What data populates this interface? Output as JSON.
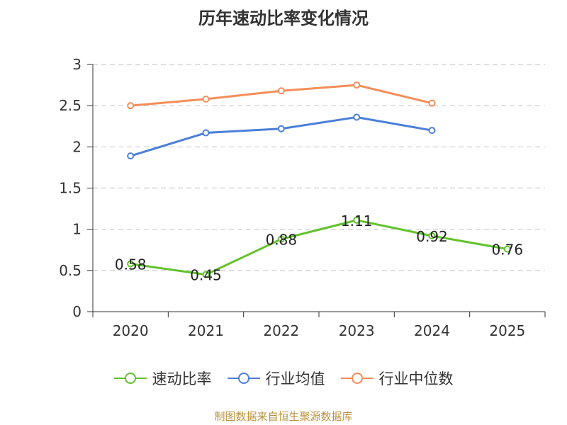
{
  "chart_data": {
    "type": "line",
    "title": "历年速动比率变化情况",
    "categories": [
      "2020",
      "2021",
      "2022",
      "2023",
      "2024",
      "2025"
    ],
    "ylim": [
      0,
      3
    ],
    "yticks": [
      "0",
      "0.5",
      "1",
      "1.5",
      "2",
      "2.5",
      "3"
    ],
    "grid": true,
    "legend_position": "bottom",
    "series": [
      {
        "name": "速动比率",
        "color": "#63c22d",
        "show_labels": true,
        "values": [
          0.58,
          0.45,
          0.88,
          1.11,
          0.92,
          0.76
        ],
        "labels": [
          "0.58",
          "0.45",
          "0.88",
          "1.11",
          "0.92",
          "0.76"
        ]
      },
      {
        "name": "行业均值",
        "color": "#4a7fda",
        "show_labels": false,
        "values": [
          1.89,
          2.17,
          2.22,
          2.36,
          2.2,
          null
        ]
      },
      {
        "name": "行业中位数",
        "color": "#f58d59",
        "show_labels": false,
        "values": [
          2.5,
          2.58,
          2.68,
          2.75,
          2.53,
          null
        ]
      }
    ]
  },
  "source": "制图数据来自恒生聚源数据库"
}
